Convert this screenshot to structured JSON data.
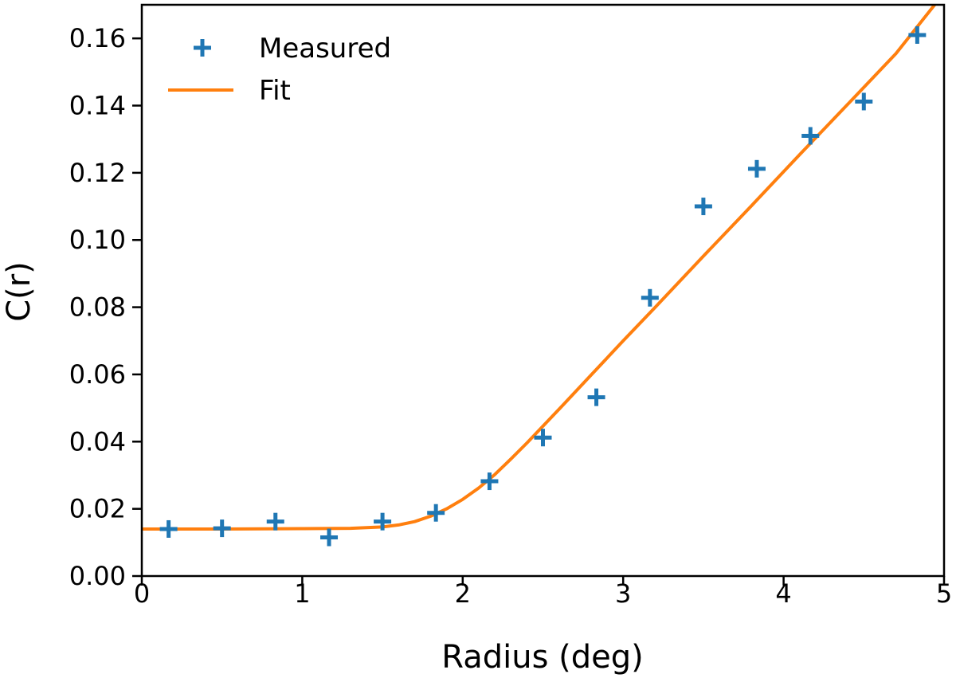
{
  "chart_data": {
    "type": "scatter",
    "title": "",
    "xlabel": "Radius (deg)",
    "ylabel": "C(r)",
    "xlim": [
      0,
      5
    ],
    "ylim": [
      0,
      0.17
    ],
    "grid": false,
    "legend_position": "top-left",
    "x_ticks": [
      0,
      1,
      2,
      3,
      4,
      5
    ],
    "x_tick_labels": [
      "0",
      "1",
      "2",
      "3",
      "4",
      "5"
    ],
    "y_ticks": [
      0,
      0.02,
      0.04,
      0.06,
      0.08,
      0.1,
      0.12,
      0.14,
      0.16
    ],
    "y_tick_labels": [
      "0.00",
      "0.02",
      "0.04",
      "0.06",
      "0.08",
      "0.10",
      "0.12",
      "0.14",
      "0.16"
    ],
    "series": [
      {
        "name": "Measured",
        "kind": "scatter",
        "marker": "plus",
        "color": "#1f77b4",
        "x": [
          0.167,
          0.5,
          0.833,
          1.167,
          1.5,
          1.833,
          2.167,
          2.5,
          2.833,
          3.167,
          3.5,
          3.833,
          4.167,
          4.5,
          4.833
        ],
        "y": [
          0.014,
          0.0142,
          0.0162,
          0.0115,
          0.0162,
          0.0188,
          0.0282,
          0.0412,
          0.0532,
          0.0828,
          0.11,
          0.1212,
          0.131,
          0.1412,
          0.161
        ]
      },
      {
        "name": "Fit",
        "kind": "line",
        "color": "#ff7f0e",
        "x": [
          0.0,
          0.5,
          1.0,
          1.3,
          1.5,
          1.6,
          1.7,
          1.8,
          1.9,
          2.0,
          2.1,
          2.2,
          2.3,
          2.4,
          2.5,
          2.6,
          2.8,
          3.0,
          3.2,
          3.5,
          3.8,
          4.1,
          4.4,
          4.7,
          4.95
        ],
        "y": [
          0.014,
          0.014,
          0.0141,
          0.0142,
          0.0146,
          0.0152,
          0.0162,
          0.0178,
          0.02,
          0.0228,
          0.0262,
          0.0302,
          0.0348,
          0.0396,
          0.0446,
          0.0496,
          0.0598,
          0.07,
          0.08,
          0.0952,
          0.1102,
          0.1254,
          0.1404,
          0.1555,
          0.1705
        ]
      }
    ]
  }
}
